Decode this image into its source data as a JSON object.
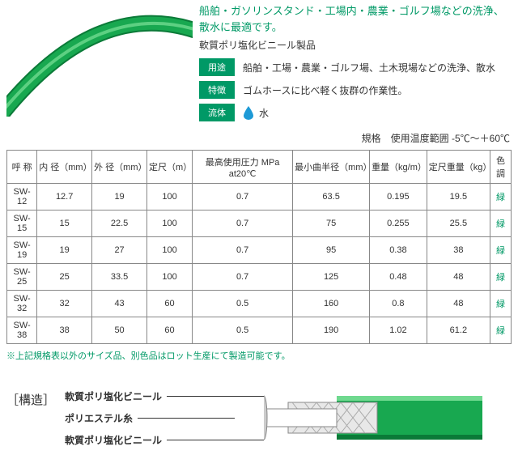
{
  "headline": "船舶・ガソリンスタンド・工場内・農業・ゴルフ場などの洗浄、散水に最適です。",
  "subhead": "軟質ポリ塩化ビニール製品",
  "badges": {
    "use": "用途",
    "feature": "特徴",
    "fluid": "流体"
  },
  "use_text": "船舶・工場・農業・ゴルフ場、土木現場などの洗浄、散水",
  "feature_text": "ゴムホースに比べ軽く抜群の作業性。",
  "fluid_text": "水",
  "spec_note": "規格　使用温度範囲 -5℃～＋60℃",
  "table": {
    "headers": [
      "呼 称",
      "内 径（mm）",
      "外 径（mm）",
      "定尺（m）",
      "最高使用圧力 MPa at20℃",
      "最小曲半径（mm）",
      "重量（kg/m）",
      "定尺重量（kg）",
      "色調"
    ],
    "rows": [
      [
        "SW-12",
        "12.7",
        "19",
        "100",
        "0.7",
        "63.5",
        "0.195",
        "19.5",
        "緑"
      ],
      [
        "SW-15",
        "15",
        "22.5",
        "100",
        "0.7",
        "75",
        "0.255",
        "25.5",
        "緑"
      ],
      [
        "SW-19",
        "19",
        "27",
        "100",
        "0.7",
        "95",
        "0.38",
        "38",
        "緑"
      ],
      [
        "SW-25",
        "25",
        "33.5",
        "100",
        "0.7",
        "125",
        "0.48",
        "48",
        "緑"
      ],
      [
        "SW-32",
        "32",
        "43",
        "60",
        "0.5",
        "160",
        "0.8",
        "48",
        "緑"
      ],
      [
        "SW-38",
        "38",
        "50",
        "60",
        "0.5",
        "190",
        "1.02",
        "61.2",
        "緑"
      ]
    ]
  },
  "footnote": "※上記規格表以外のサイズ品、別色品はロット生産にて製造可能です。",
  "structure": {
    "title": "［構造］",
    "layers": [
      "軟質ポリ塩化ビニール",
      "ポリエステル糸",
      "軟質ポリ塩化ビニール"
    ]
  },
  "colors": {
    "brand_green": "#009966",
    "hose_green": "#18a850",
    "hose_dark": "#0b7a38",
    "drop_blue": "#1e9ad6",
    "table_border": "#888888"
  }
}
